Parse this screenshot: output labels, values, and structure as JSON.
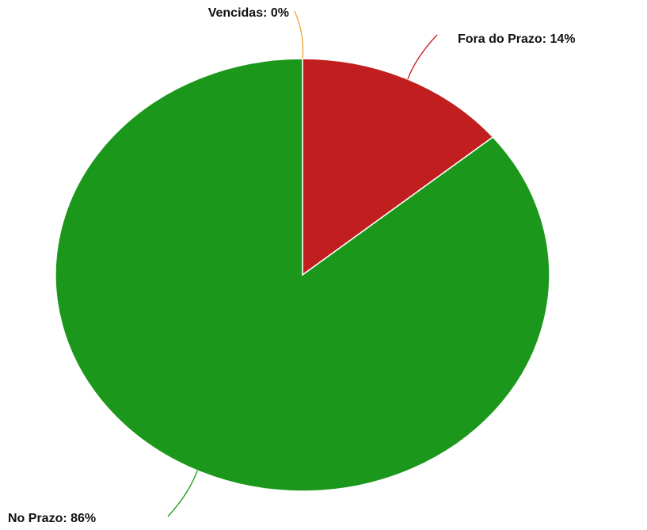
{
  "chart_data": {
    "type": "pie",
    "values": [
      0,
      14,
      86
    ],
    "value_labels": [
      "Vencidas: 0%",
      "Fora do Prazo: 14%",
      "No Prazo: 86%"
    ],
    "colors": [
      "#f0a030",
      "#c11f1f",
      "#1b981b"
    ]
  }
}
